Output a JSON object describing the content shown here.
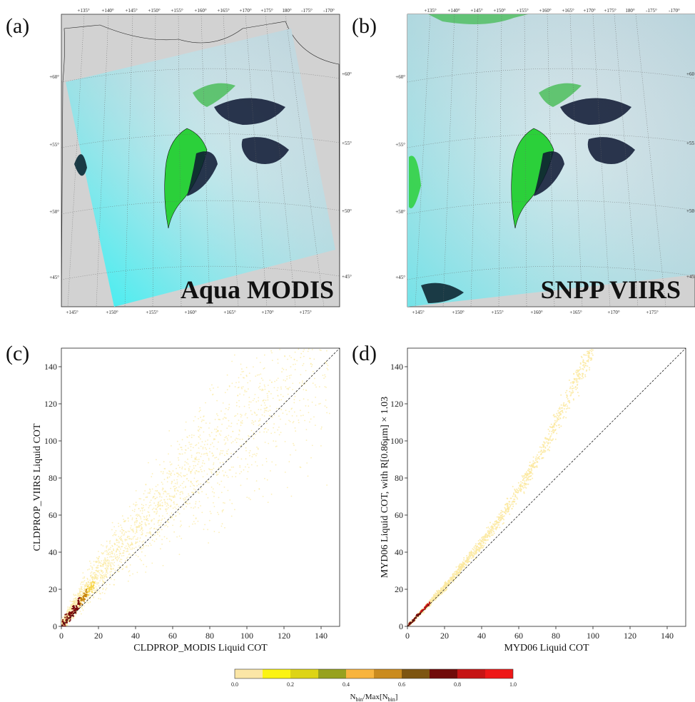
{
  "panels": {
    "a": {
      "letter": "(a)",
      "map_label": "Aqua MODIS"
    },
    "b": {
      "letter": "(b)",
      "map_label": "SNPP VIIRS"
    },
    "c": {
      "letter": "(c)"
    },
    "d": {
      "letter": "(d)"
    }
  },
  "map_ticks": {
    "top": [
      "+135°",
      "+140°",
      "+145°",
      "+150°",
      "+155°",
      "+160°",
      "+165°",
      "+170°",
      "+175°",
      "180°",
      "-175°",
      "-170°"
    ],
    "bottom": [
      "+145°",
      "+150°",
      "+155°",
      "+160°",
      "+165°",
      "+170°",
      "+175°"
    ],
    "left": [
      "+60°",
      "+55°",
      "+50°",
      "+45°"
    ],
    "right": [
      "+60°",
      "+55°",
      "+50°",
      "+45°"
    ],
    "right_b": [
      "+60",
      "+55",
      "+50",
      "+45"
    ]
  },
  "colors": {
    "background": "#d2d2d2",
    "cloud": "#c7d8de",
    "cyan": "#2ff2f4",
    "land": "#2bd03a",
    "ocean": "#0c1530",
    "scatter_light": "#fbe9a0",
    "scatter_dark": "#7a0a0a"
  },
  "chart_data": [
    {
      "type": "scatter",
      "panel": "(c)",
      "xlabel": "CLDPROP_MODIS Liquid COT",
      "ylabel": "CLDPROP_VIIRS Liquid COT",
      "xlim": [
        0,
        150
      ],
      "ylim": [
        0,
        150
      ],
      "xticks": [
        0,
        20,
        40,
        60,
        80,
        100,
        120,
        140
      ],
      "yticks": [
        0,
        20,
        40,
        60,
        80,
        100,
        120,
        140
      ],
      "reference_line": "1:1",
      "density_ridge": {
        "x": [
          0,
          10,
          20,
          30,
          40,
          50,
          60,
          70,
          80,
          100,
          120
        ],
        "y": [
          0,
          15,
          28,
          40,
          52,
          62,
          72,
          82,
          92,
          110,
          130
        ]
      }
    },
    {
      "type": "scatter",
      "panel": "(d)",
      "xlabel": "MYD06 Liquid COT",
      "ylabel": "MYD06 Liquid COT, with R[0.86μm] × 1.03",
      "xlim": [
        0,
        150
      ],
      "ylim": [
        0,
        150
      ],
      "xticks": [
        0,
        20,
        40,
        60,
        80,
        100,
        120,
        140
      ],
      "yticks": [
        0,
        20,
        40,
        60,
        80,
        100,
        120,
        140
      ],
      "reference_line": "1:1",
      "curve": {
        "x": [
          0,
          10,
          20,
          30,
          40,
          50,
          60,
          70,
          80,
          90,
          100
        ],
        "y": [
          0,
          10.5,
          21,
          33,
          45,
          58,
          73,
          90,
          109,
          130,
          150
        ]
      }
    }
  ],
  "colorbar": {
    "label": "N_bin/Max[N_bin]",
    "ticks": [
      "0.0",
      "0.2",
      "0.4",
      "0.6",
      "0.8",
      "1.0"
    ],
    "colors": [
      "#fbe6a6",
      "#fbf313",
      "#ddd415",
      "#97a11f",
      "#f8b43e",
      "#ca8b1f",
      "#7d5511",
      "#700b09",
      "#c61414",
      "#ee1717"
    ]
  }
}
